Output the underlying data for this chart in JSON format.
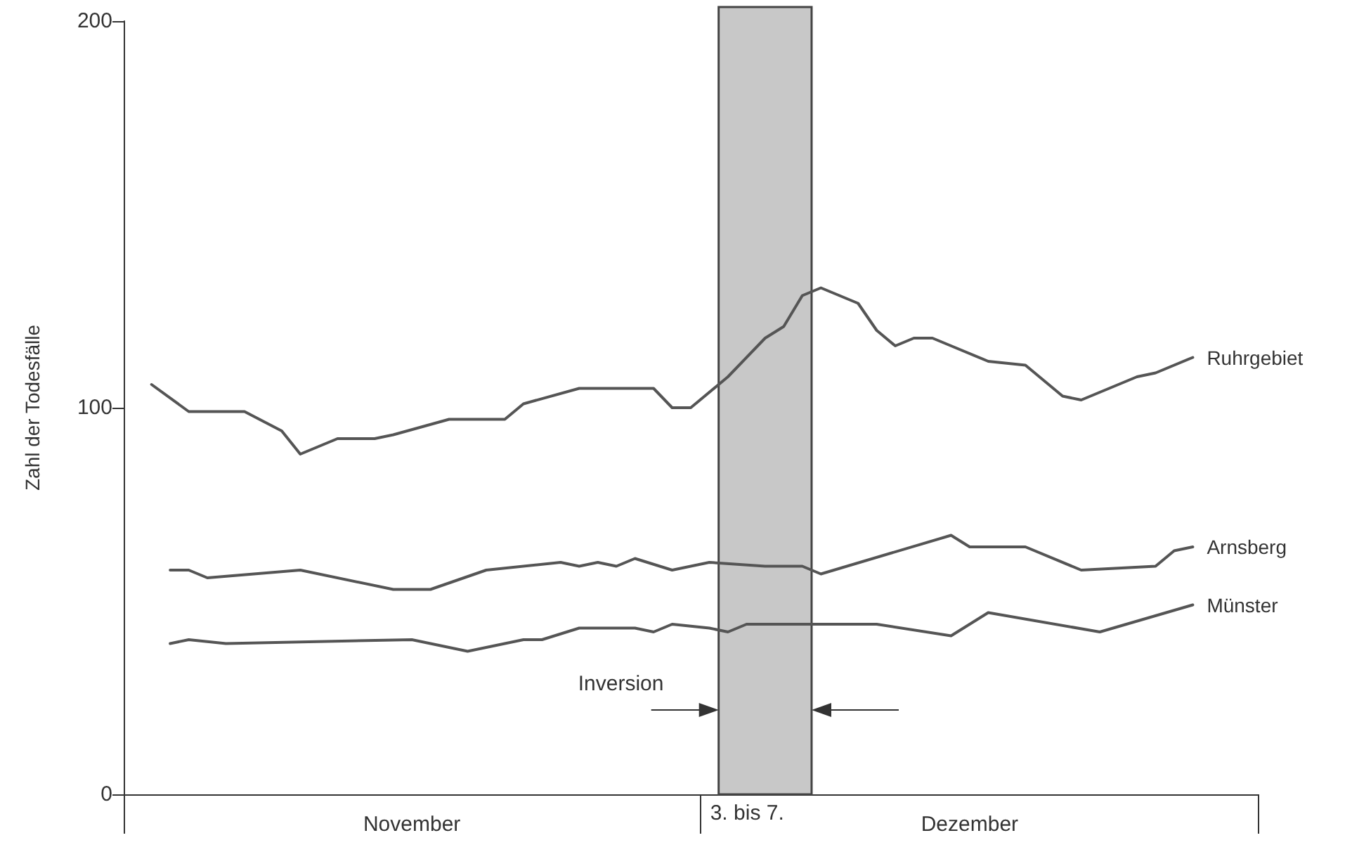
{
  "chart_data": {
    "type": "line",
    "ylabel": "Zahl der Todesfälle",
    "categories": [
      null,
      null,
      null,
      null,
      null,
      null,
      null,
      null,
      null,
      null,
      null,
      null,
      null,
      null,
      null,
      "November",
      null,
      null,
      null,
      null,
      null,
      null,
      null,
      null,
      null,
      null,
      null,
      null,
      null,
      null,
      null,
      null,
      null,
      null,
      null,
      null,
      null,
      null,
      null,
      null,
      null,
      null,
      null,
      null,
      null,
      "Dezember",
      null,
      null,
      null,
      null,
      null,
      null,
      null,
      null,
      null,
      null,
      null,
      null,
      null,
      null,
      null
    ],
    "ylim": [
      0,
      200
    ],
    "yticks": [
      0,
      100,
      200
    ],
    "series": [
      {
        "name": "Ruhrgebiet",
        "color": "#555555",
        "values": [
          null,
          106,
          null,
          99,
          null,
          null,
          99,
          null,
          94,
          88,
          null,
          92,
          null,
          92,
          93,
          null,
          null,
          97,
          null,
          null,
          97,
          101,
          null,
          null,
          105,
          null,
          null,
          null,
          105,
          100,
          100,
          null,
          108,
          null,
          118,
          121,
          129,
          131,
          null,
          127,
          120,
          116,
          118,
          118,
          116,
          null,
          112,
          null,
          111,
          null,
          103,
          102,
          null,
          null,
          108,
          109,
          null,
          113,
          null,
          null,
          null
        ]
      },
      {
        "name": "Arnsberg",
        "color": "#555555",
        "values": [
          null,
          null,
          58,
          58,
          56,
          null,
          null,
          null,
          null,
          58,
          null,
          null,
          null,
          null,
          53,
          null,
          53,
          null,
          null,
          58,
          null,
          null,
          null,
          60,
          59,
          60,
          59,
          61,
          null,
          58,
          null,
          60,
          null,
          null,
          59,
          59,
          59,
          57,
          null,
          null,
          null,
          null,
          null,
          null,
          67,
          64,
          null,
          null,
          64,
          null,
          null,
          58,
          null,
          null,
          null,
          59,
          63,
          64,
          null,
          null,
          null
        ]
      },
      {
        "name": "Münster",
        "color": "#555555",
        "values": [
          null,
          null,
          39,
          40,
          null,
          39,
          null,
          null,
          null,
          null,
          null,
          null,
          null,
          null,
          null,
          40,
          null,
          null,
          37,
          null,
          null,
          40,
          40,
          null,
          43,
          null,
          null,
          43,
          42,
          44,
          null,
          43,
          42,
          44,
          null,
          null,
          null,
          null,
          null,
          null,
          44,
          null,
          null,
          null,
          41,
          null,
          47,
          null,
          null,
          null,
          null,
          null,
          42,
          null,
          null,
          null,
          null,
          49,
          null,
          null,
          null
        ]
      }
    ],
    "annotations": [
      "Inversion",
      "3. bis 7."
    ],
    "grid": false,
    "legend": false,
    "marker": "none",
    "line_style": "solid"
  }
}
